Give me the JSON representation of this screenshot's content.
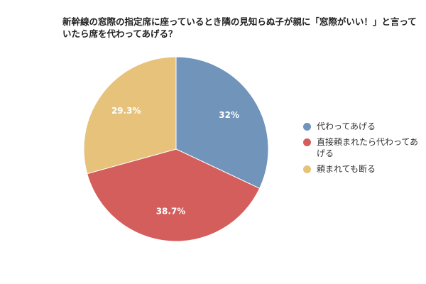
{
  "chart_data": {
    "type": "pie",
    "title": "新幹線の窓際の指定席に座っているとき隣の見知らぬ子が親に「窓際がいい！」と言っていたら席を代わってあげる？",
    "categories": [
      "代わってあげる",
      "直接頼まれたら代わってあげる",
      "頼まれても断る"
    ],
    "values": [
      32,
      38.7,
      29.3
    ],
    "value_labels": [
      "32%",
      "38.7%",
      "29.3%"
    ],
    "colors": [
      "#7194bb",
      "#d45e5c",
      "#e6c27a"
    ],
    "legend": "right"
  }
}
